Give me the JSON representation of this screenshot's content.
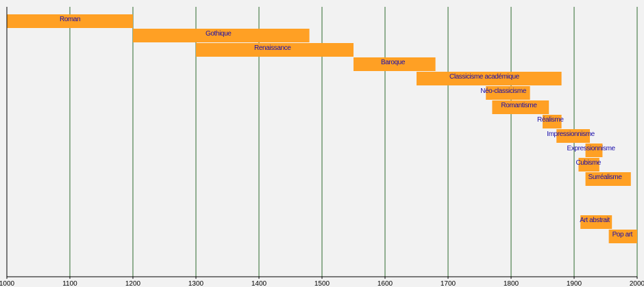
{
  "chart_data": {
    "type": "bar",
    "orientation": "horizontal-timeline",
    "title": "",
    "xlabel": "",
    "ylabel": "",
    "xlim": [
      1000,
      2000
    ],
    "x_ticks": [
      1000,
      1100,
      1200,
      1300,
      1400,
      1500,
      1600,
      1700,
      1800,
      1900,
      2000
    ],
    "grid": true,
    "colors": {
      "bar": "#ffa024",
      "label": "#1a0dab",
      "grid": "#2f6b2f",
      "axis": "#000000",
      "background": "#f2f2f2"
    },
    "periods": [
      {
        "label": "Roman",
        "start": 1000,
        "end": 1200,
        "row": 0
      },
      {
        "label": "Gothique",
        "start": 1200,
        "end": 1480,
        "row": 1
      },
      {
        "label": "Renaissance",
        "start": 1300,
        "end": 1550,
        "row": 2
      },
      {
        "label": "Baroque",
        "start": 1550,
        "end": 1680,
        "row": 3
      },
      {
        "label": "Classicisme académique",
        "start": 1650,
        "end": 1880,
        "row": 4
      },
      {
        "label": "Néo-classicisme",
        "start": 1760,
        "end": 1830,
        "row": 5
      },
      {
        "label": "Romantisme",
        "start": 1770,
        "end": 1860,
        "row": 6
      },
      {
        "label": "Réalisme",
        "start": 1850,
        "end": 1880,
        "row": 7
      },
      {
        "label": "Impressionnisme",
        "start": 1872,
        "end": 1925,
        "row": 8
      },
      {
        "label": "Expressionnisme",
        "start": 1918,
        "end": 1945,
        "row": 9
      },
      {
        "label": "Cubisme",
        "start": 1907,
        "end": 1940,
        "row": 10
      },
      {
        "label": "Surréalisme",
        "start": 1918,
        "end": 1990,
        "row": 11
      },
      {
        "label": "Art abstrait",
        "start": 1910,
        "end": 1960,
        "row": 14
      },
      {
        "label": "Pop art",
        "start": 1955,
        "end": 2000,
        "row": 15
      }
    ]
  }
}
